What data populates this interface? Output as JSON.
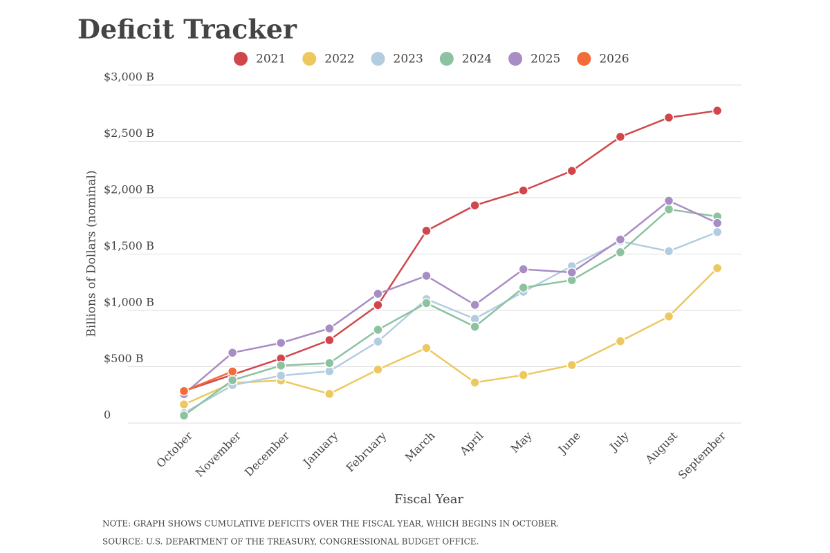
{
  "chart_data": {
    "type": "line",
    "title": "Deficit Tracker",
    "x_label": "Fiscal Year",
    "y_label": "Billions of Dollars (nominal)",
    "notes": [
      "NOTE: GRAPH SHOWS CUMULATIVE DEFICITS OVER THE FISCAL YEAR, WHICH BEGINS IN OCTOBER.",
      "SOURCE: U.S. DEPARTMENT OF THE TREASURY, CONGRESSIONAL BUDGET OFFICE."
    ],
    "categories": [
      "October",
      "November",
      "December",
      "January",
      "February",
      "March",
      "April",
      "May",
      "June",
      "July",
      "August",
      "September"
    ],
    "ylim": [
      0,
      3000
    ],
    "yticks": [
      0,
      {
        "value": 500,
        "label": "$500 B"
      },
      {
        "value": 1000,
        "label": "$1,000 B"
      },
      {
        "value": 1500,
        "label": "$1,500 B"
      },
      {
        "value": 2000,
        "label": "$2,000 B"
      },
      {
        "value": 2500,
        "label": "$2,500 B"
      },
      {
        "value": 3000,
        "label": "$3,000 B"
      }
    ],
    "grid": true,
    "legend": "top",
    "series": [
      {
        "name": "2021",
        "color": "#d0464b",
        "values": [
          284,
          429,
          573,
          736,
          1047,
          1706,
          1932,
          2064,
          2238,
          2540,
          2711,
          2772
        ]
      },
      {
        "name": "2022",
        "color": "#edc85f",
        "values": [
          165,
          356,
          378,
          259,
          475,
          666,
          360,
          426,
          515,
          726,
          946,
          1375
        ]
      },
      {
        "name": "2023",
        "color": "#b3cde0",
        "values": [
          88,
          336,
          421,
          460,
          723,
          1100,
          925,
          1165,
          1393,
          1614,
          1525,
          1695
        ]
      },
      {
        "name": "2024",
        "color": "#8cc2a0",
        "values": [
          67,
          380,
          510,
          532,
          828,
          1065,
          855,
          1202,
          1268,
          1516,
          1897,
          1833
        ]
      },
      {
        "name": "2025",
        "color": "#a88cc4",
        "values": [
          257,
          624,
          711,
          840,
          1147,
          1307,
          1049,
          1365,
          1337,
          1629,
          1973,
          1775
        ]
      },
      {
        "name": "2026",
        "color": "#f26b38",
        "values": [
          284,
          458,
          null,
          null,
          null,
          null,
          null,
          null,
          null,
          null,
          null,
          null
        ]
      }
    ]
  }
}
